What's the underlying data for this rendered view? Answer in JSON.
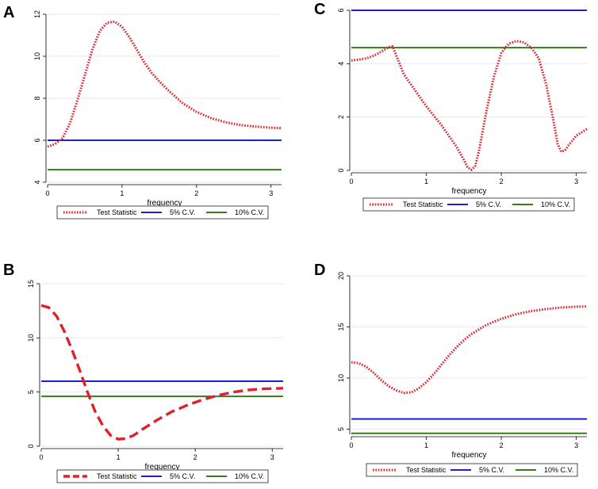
{
  "chart_data": [
    {
      "panel": "A",
      "type": "line",
      "xlabel": "frequency",
      "ylabel": "",
      "xlim": [
        0,
        3.1416
      ],
      "ylim": [
        4,
        12
      ],
      "xticks": [
        "0",
        "1",
        "2",
        "3"
      ],
      "yticks": [
        "4",
        "6",
        "8",
        "10",
        "12"
      ],
      "series": [
        {
          "name": "Test Statistic",
          "style": "dotted",
          "color": "#e0202a",
          "x": [
            0,
            0.1,
            0.2,
            0.3,
            0.4,
            0.5,
            0.6,
            0.7,
            0.8,
            0.9,
            1.0,
            1.1,
            1.2,
            1.3,
            1.4,
            1.5,
            1.6,
            1.8,
            2.0,
            2.2,
            2.4,
            2.6,
            2.8,
            3.0,
            3.1416
          ],
          "y": [
            5.7,
            5.82,
            6.1,
            6.8,
            7.9,
            9.1,
            10.3,
            11.2,
            11.6,
            11.65,
            11.4,
            10.9,
            10.3,
            9.7,
            9.2,
            8.8,
            8.45,
            7.8,
            7.35,
            7.05,
            6.85,
            6.72,
            6.65,
            6.6,
            6.58
          ]
        },
        {
          "name": "5% C.V.",
          "style": "solid",
          "color": "#1f1fcf",
          "x": [
            0,
            3.1416
          ],
          "y": [
            6.0,
            6.0
          ]
        },
        {
          "name": "10% C.V.",
          "style": "solid",
          "color": "#3a7a1e",
          "x": [
            0,
            3.1416
          ],
          "y": [
            4.6,
            4.6
          ]
        }
      ]
    },
    {
      "panel": "B",
      "type": "line",
      "xlabel": "frequency",
      "ylabel": "",
      "xlim": [
        0,
        3.1416
      ],
      "ylim": [
        0,
        15
      ],
      "xticks": [
        "0",
        "1",
        "2",
        "3"
      ],
      "yticks": [
        "0",
        "5",
        "10",
        "15"
      ],
      "series": [
        {
          "name": "Test Statistic",
          "style": "dashed",
          "color": "#e0202a",
          "x": [
            0,
            0.1,
            0.2,
            0.3,
            0.4,
            0.5,
            0.6,
            0.7,
            0.8,
            0.9,
            1.0,
            1.1,
            1.2,
            1.3,
            1.5,
            1.7,
            1.9,
            2.1,
            2.3,
            2.5,
            2.7,
            2.9,
            3.1416
          ],
          "y": [
            13.0,
            12.8,
            12.0,
            10.6,
            8.9,
            7.0,
            5.0,
            3.2,
            1.9,
            1.0,
            0.65,
            0.7,
            1.0,
            1.5,
            2.4,
            3.2,
            3.8,
            4.3,
            4.7,
            5.0,
            5.2,
            5.3,
            5.35
          ]
        },
        {
          "name": "5% C.V.",
          "style": "solid",
          "color": "#1f1fcf",
          "x": [
            0,
            3.1416
          ],
          "y": [
            6.0,
            6.0
          ]
        },
        {
          "name": "10% C.V.",
          "style": "solid",
          "color": "#3a7a1e",
          "x": [
            0,
            3.1416
          ],
          "y": [
            4.6,
            4.6
          ]
        }
      ]
    },
    {
      "panel": "C",
      "type": "line",
      "xlabel": "frequency",
      "ylabel": "",
      "xlim": [
        0,
        3.1416
      ],
      "ylim": [
        0,
        6
      ],
      "xticks": [
        "0",
        "1",
        "2",
        "3"
      ],
      "yticks": [
        "0",
        "2",
        "4",
        "6"
      ],
      "series": [
        {
          "name": "Test Statistic",
          "style": "dotted",
          "color": "#e0202a",
          "x": [
            0,
            0.1,
            0.2,
            0.3,
            0.4,
            0.5,
            0.55,
            0.6,
            0.7,
            0.8,
            0.9,
            1.0,
            1.1,
            1.2,
            1.3,
            1.4,
            1.5,
            1.55,
            1.6,
            1.65,
            1.7,
            1.8,
            1.9,
            2.0,
            2.1,
            2.2,
            2.3,
            2.4,
            2.5,
            2.6,
            2.7,
            2.75,
            2.8,
            2.85,
            2.9,
            3.0,
            3.1416
          ],
          "y": [
            4.12,
            4.15,
            4.2,
            4.3,
            4.45,
            4.62,
            4.65,
            4.3,
            3.6,
            3.2,
            2.8,
            2.4,
            2.05,
            1.7,
            1.3,
            0.9,
            0.4,
            0.12,
            0.02,
            0.15,
            0.7,
            2.2,
            3.5,
            4.4,
            4.75,
            4.85,
            4.8,
            4.6,
            4.2,
            3.2,
            1.8,
            1.0,
            0.7,
            0.75,
            0.95,
            1.3,
            1.55
          ]
        },
        {
          "name": "5% C.V.",
          "style": "solid",
          "color": "#1f1fcf",
          "x": [
            0,
            3.1416
          ],
          "y": [
            6.0,
            6.0
          ]
        },
        {
          "name": "10% C.V.",
          "style": "solid",
          "color": "#3a7a1e",
          "x": [
            0,
            3.1416
          ],
          "y": [
            4.6,
            4.6
          ]
        }
      ]
    },
    {
      "panel": "D",
      "type": "line",
      "xlabel": "frequency",
      "ylabel": "",
      "xlim": [
        0,
        3.1416
      ],
      "ylim": [
        4.5,
        20
      ],
      "xticks": [
        "0",
        "1",
        "2",
        "3"
      ],
      "yticks": [
        "5",
        "10",
        "15",
        "20"
      ],
      "series": [
        {
          "name": "Test Statistic",
          "style": "dotted",
          "color": "#e0202a",
          "x": [
            0,
            0.1,
            0.2,
            0.3,
            0.4,
            0.5,
            0.6,
            0.7,
            0.8,
            0.9,
            1.0,
            1.1,
            1.2,
            1.3,
            1.4,
            1.5,
            1.6,
            1.8,
            2.0,
            2.2,
            2.4,
            2.6,
            2.8,
            3.0,
            3.1416
          ],
          "y": [
            11.55,
            11.45,
            11.1,
            10.5,
            9.8,
            9.2,
            8.8,
            8.55,
            8.6,
            9.0,
            9.6,
            10.4,
            11.3,
            12.2,
            13.0,
            13.7,
            14.3,
            15.2,
            15.8,
            16.25,
            16.55,
            16.75,
            16.9,
            16.98,
            17.0
          ]
        },
        {
          "name": "5% C.V.",
          "style": "solid",
          "color": "#1f1fcf",
          "x": [
            0,
            3.1416
          ],
          "y": [
            6.0,
            6.0
          ]
        },
        {
          "name": "10% C.V.",
          "style": "solid",
          "color": "#3a7a1e",
          "x": [
            0,
            3.1416
          ],
          "y": [
            4.6,
            4.6
          ]
        }
      ]
    }
  ]
}
